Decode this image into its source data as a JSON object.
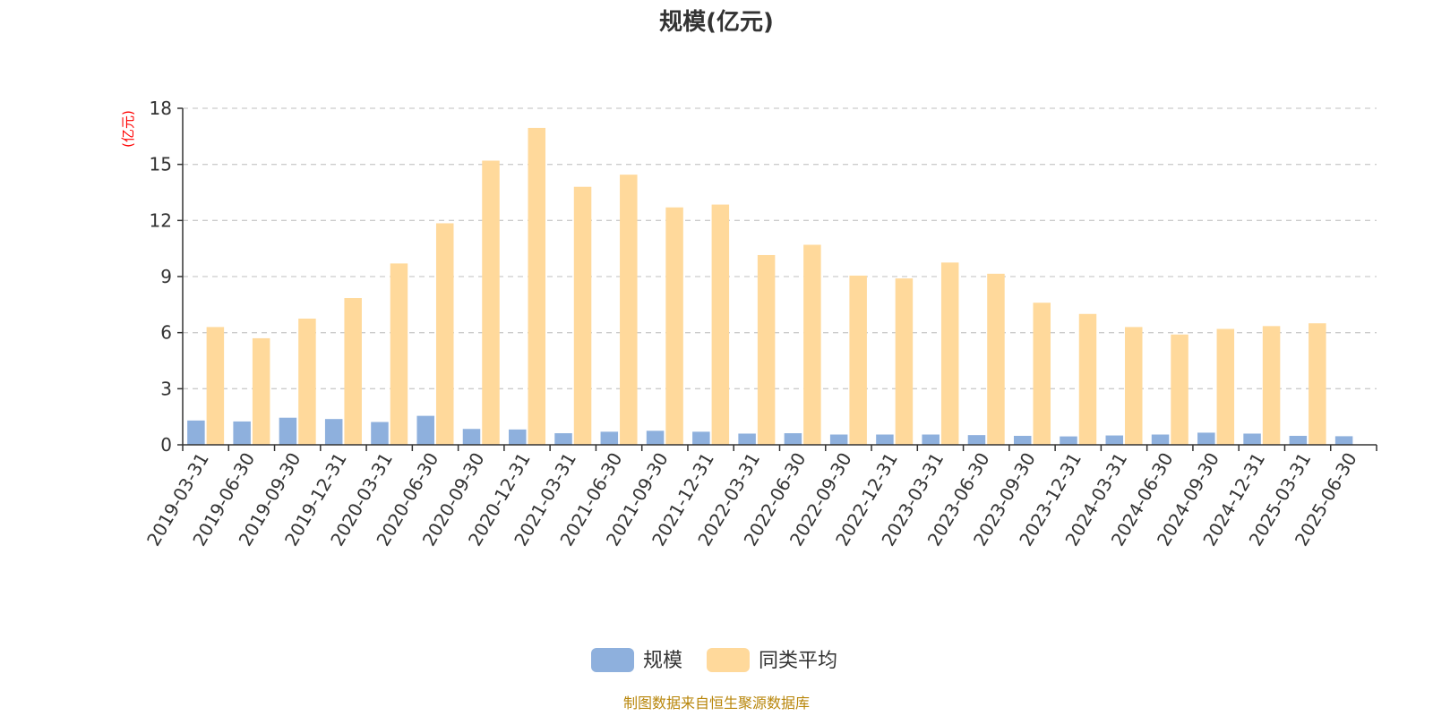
{
  "chart_data": {
    "type": "bar",
    "title": "规模(亿元)",
    "ylabel": "(亿元)",
    "ylim": [
      0,
      18
    ],
    "yticks": [
      0,
      3,
      6,
      9,
      12,
      15,
      18
    ],
    "grid": true,
    "legend_position": "bottom-center",
    "categories": [
      "2019-03-31",
      "2019-06-30",
      "2019-09-30",
      "2019-12-31",
      "2020-03-31",
      "2020-06-30",
      "2020-09-30",
      "2020-12-31",
      "2021-03-31",
      "2021-06-30",
      "2021-09-30",
      "2021-12-31",
      "2022-03-31",
      "2022-06-30",
      "2022-09-30",
      "2022-12-31",
      "2023-03-31",
      "2023-06-30",
      "2023-09-30",
      "2023-12-31",
      "2024-03-31",
      "2024-06-30",
      "2024-09-30",
      "2024-12-31",
      "2025-03-31",
      "2025-06-30"
    ],
    "series": [
      {
        "name": "规模",
        "color": "#8eb0dd",
        "values": [
          1.3,
          1.25,
          1.45,
          1.38,
          1.22,
          1.55,
          0.85,
          0.82,
          0.62,
          0.7,
          0.75,
          0.7,
          0.6,
          0.62,
          0.55,
          0.55,
          0.55,
          0.52,
          0.48,
          0.45,
          0.5,
          0.55,
          0.65,
          0.6,
          0.48,
          0.46
        ]
      },
      {
        "name": "同类平均",
        "color": "#ffd99b",
        "values": [
          6.3,
          5.7,
          6.75,
          7.85,
          9.7,
          11.85,
          15.2,
          16.95,
          13.8,
          14.45,
          12.7,
          12.85,
          10.15,
          10.7,
          9.05,
          8.9,
          9.75,
          9.15,
          7.6,
          7.0,
          6.3,
          5.9,
          6.2,
          6.35,
          6.5,
          null
        ]
      }
    ],
    "source": "制图数据来自恒生聚源数据库"
  }
}
